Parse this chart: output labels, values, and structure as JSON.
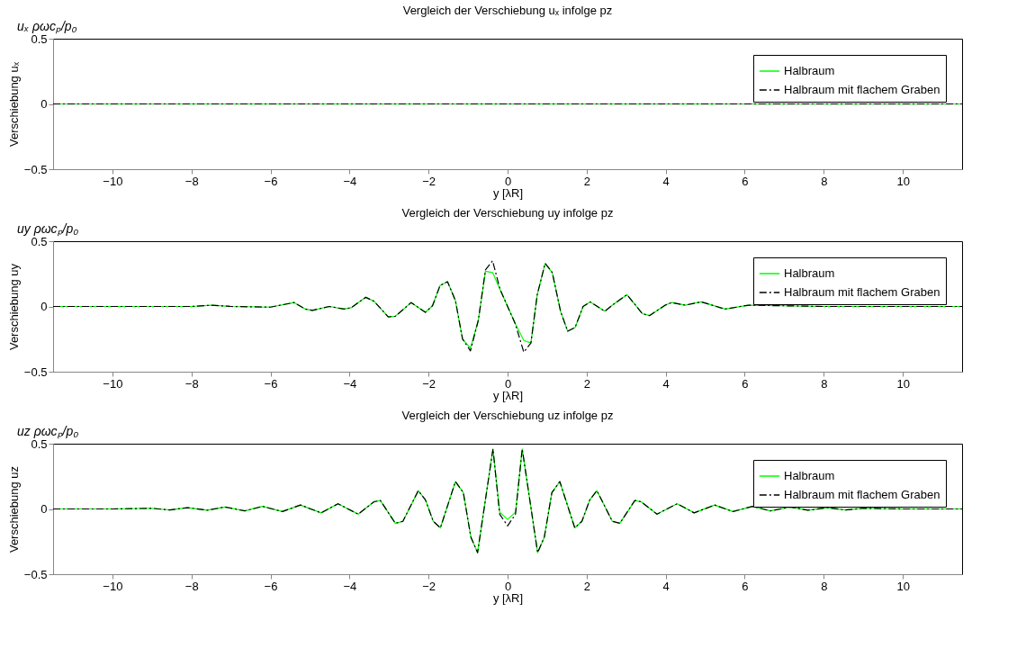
{
  "chart_data": [
    {
      "type": "line",
      "title": "Vergleich der Verschiebung uₓ infolge pz",
      "xlabel": "y [λR]",
      "ylabel": "Verschiebung uₓ",
      "annotations": [
        "uₓ ρωcₚ/p₀"
      ],
      "x": [
        -11.5,
        -5,
        0,
        5,
        11.5
      ],
      "series": [
        {
          "name": "Halbraum",
          "color": "#00ff00",
          "line_style": "solid",
          "values": [
            0,
            0,
            0,
            0,
            0
          ]
        },
        {
          "name": "Halbraum mit flachem Graben",
          "color": "#000000",
          "line_style": "dashed",
          "values": [
            0,
            0,
            0,
            0,
            0
          ]
        }
      ],
      "xlim": [
        -11.5,
        11.5
      ],
      "xticks": [
        -10,
        -8,
        -6,
        -4,
        -2,
        0,
        2,
        4,
        6,
        8,
        10
      ],
      "ylim": [
        -0.5,
        0.5
      ],
      "yticks": [
        -0.5,
        0,
        0.5
      ],
      "legend": "top right"
    },
    {
      "type": "line",
      "title": "Vergleich der Verschiebung uy infolge pz",
      "xlabel": "y [λR]",
      "ylabel": "Verschiebung uy",
      "annotations": [
        "uy ρωcₚ/p₀"
      ],
      "x": [
        -11.5,
        -10,
        -9,
        -8,
        -7.5,
        -7,
        -6,
        -5.4,
        -5.12,
        -4.94,
        -4.51,
        -4.14,
        -3.96,
        -3.59,
        -3.38,
        -3.02,
        -2.84,
        -2.44,
        -2.08,
        -1.9,
        -1.71,
        -1.52,
        -1.32,
        -1.14,
        -0.94,
        -0.74,
        -0.56,
        -0.38,
        -0.19,
        0,
        0.19,
        0.41,
        0.59,
        0.75,
        0.95,
        1.13,
        1.34,
        1.52,
        1.71,
        1.91,
        2.09,
        2.46,
        2.65,
        3.02,
        3.41,
        3.59,
        3.99,
        4.15,
        4.5,
        4.9,
        5.5,
        6.1,
        7,
        8,
        9,
        10,
        11.5
      ],
      "series": [
        {
          "name": "Halbraum",
          "color": "#00ff00",
          "line_style": "solid",
          "values": [
            0,
            0,
            0,
            0,
            0.01,
            0,
            -0.005,
            0.03,
            -0.02,
            -0.03,
            0,
            -0.02,
            -0.01,
            0.07,
            0.04,
            -0.08,
            -0.075,
            0.03,
            -0.045,
            0.005,
            0.16,
            0.19,
            0.045,
            -0.25,
            -0.32,
            -0.105,
            0.27,
            0.26,
            0.13,
            0,
            -0.13,
            -0.26,
            -0.28,
            0.09,
            0.33,
            0.26,
            -0.037,
            -0.19,
            -0.16,
            0,
            0.035,
            -0.037,
            0.01,
            0.09,
            -0.055,
            -0.07,
            0.01,
            0.03,
            0.01,
            0.035,
            -0.02,
            0.01,
            0.005,
            0,
            0,
            0,
            0
          ]
        },
        {
          "name": "Halbraum mit flachem Graben",
          "color": "#000000",
          "line_style": "dashed",
          "values": [
            0,
            0,
            0,
            0,
            0.01,
            0,
            -0.005,
            0.03,
            -0.02,
            -0.03,
            0,
            -0.02,
            -0.01,
            0.07,
            0.04,
            -0.08,
            -0.075,
            0.03,
            -0.045,
            0.005,
            0.16,
            0.19,
            0.045,
            -0.25,
            -0.34,
            -0.105,
            0.28,
            0.35,
            0.13,
            0,
            -0.13,
            -0.35,
            -0.28,
            0.09,
            0.33,
            0.26,
            -0.037,
            -0.19,
            -0.16,
            0,
            0.035,
            -0.037,
            0.01,
            0.09,
            -0.055,
            -0.07,
            0.01,
            0.03,
            0.01,
            0.035,
            -0.02,
            0.01,
            0.005,
            0,
            0,
            0,
            0
          ]
        }
      ],
      "xlim": [
        -11.5,
        11.5
      ],
      "xticks": [
        -10,
        -8,
        -6,
        -4,
        -2,
        0,
        2,
        4,
        6,
        8,
        10
      ],
      "ylim": [
        -0.5,
        0.5
      ],
      "yticks": [
        -0.5,
        0,
        0.5
      ],
      "legend": "top right"
    },
    {
      "type": "line",
      "title": "Vergleich der Verschiebung uz infolge pz",
      "xlabel": "y [λR]",
      "ylabel": "Verschiebung uz",
      "annotations": [
        "uz ρωcₚ/p₀"
      ],
      "x": [
        -11.5,
        -10,
        -9,
        -8.55,
        -8.1,
        -7.6,
        -7.15,
        -6.65,
        -6.2,
        -5.7,
        -5.24,
        -4.72,
        -4.29,
        -3.78,
        -3.38,
        -3.22,
        -2.84,
        -2.65,
        -2.26,
        -2.08,
        -1.88,
        -1.7,
        -1.32,
        -1.12,
        -0.93,
        -0.76,
        -0.37,
        -0.2,
        0,
        0.2,
        0.37,
        0.76,
        0.93,
        1.12,
        1.32,
        1.7,
        1.88,
        2.08,
        2.26,
        2.65,
        2.84,
        3.22,
        3.38,
        3.78,
        4.29,
        4.72,
        5.24,
        5.7,
        6.2,
        6.65,
        7.15,
        7.6,
        8.1,
        8.55,
        9,
        10,
        11.5
      ],
      "series": [
        {
          "name": "Halbraum",
          "color": "#00ff00",
          "line_style": "solid",
          "values": [
            0,
            0,
            0.005,
            -0.008,
            0.01,
            -0.01,
            0.015,
            -0.015,
            0.02,
            -0.02,
            0.03,
            -0.03,
            0.04,
            -0.04,
            0.055,
            0.065,
            -0.11,
            -0.095,
            0.14,
            0.07,
            -0.095,
            -0.145,
            0.21,
            0.125,
            -0.215,
            -0.335,
            0.46,
            -0.025,
            -0.08,
            -0.025,
            0.46,
            -0.335,
            -0.215,
            0.125,
            0.21,
            -0.145,
            -0.095,
            0.07,
            0.14,
            -0.095,
            -0.11,
            0.065,
            0.055,
            -0.04,
            0.04,
            -0.03,
            0.03,
            -0.02,
            0.02,
            -0.015,
            0.015,
            -0.01,
            0.01,
            -0.008,
            0.005,
            0,
            0
          ]
        },
        {
          "name": "Halbraum mit flachem Graben",
          "color": "#000000",
          "line_style": "dashed",
          "values": [
            0,
            0,
            0.005,
            -0.008,
            0.01,
            -0.01,
            0.015,
            -0.015,
            0.02,
            -0.02,
            0.03,
            -0.03,
            0.04,
            -0.04,
            0.055,
            0.065,
            -0.11,
            -0.095,
            0.14,
            0.07,
            -0.095,
            -0.145,
            0.21,
            0.125,
            -0.215,
            -0.335,
            0.46,
            -0.04,
            -0.13,
            -0.04,
            0.46,
            -0.335,
            -0.215,
            0.125,
            0.21,
            -0.145,
            -0.095,
            0.07,
            0.14,
            -0.095,
            -0.11,
            0.065,
            0.055,
            -0.04,
            0.04,
            -0.03,
            0.03,
            -0.02,
            0.02,
            -0.015,
            0.015,
            -0.01,
            0.01,
            -0.008,
            0.005,
            0,
            0
          ]
        }
      ],
      "xlim": [
        -11.5,
        11.5
      ],
      "xticks": [
        -10,
        -8,
        -6,
        -4,
        -2,
        0,
        2,
        4,
        6,
        8,
        10
      ],
      "ylim": [
        -0.5,
        0.5
      ],
      "yticks": [
        -0.5,
        0,
        0.5
      ],
      "legend": "top right"
    }
  ]
}
